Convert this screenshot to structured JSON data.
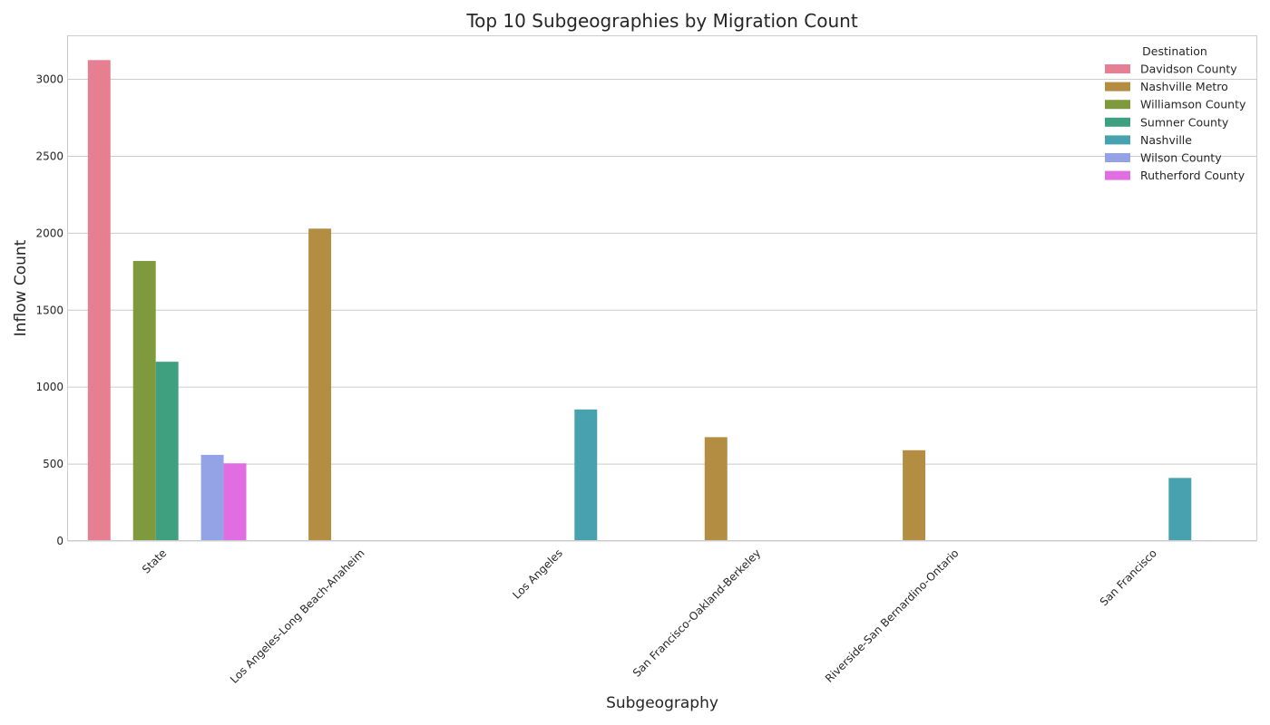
{
  "chart_data": {
    "type": "bar",
    "title": "Top 10 Subgeographies by Migration Count",
    "xlabel": "Subgeography",
    "ylabel": "Inflow Count",
    "ylim": [
      0,
      3280
    ],
    "yticks": [
      0,
      500,
      1000,
      1500,
      2000,
      2500,
      3000
    ],
    "grid": true,
    "legend": {
      "title": "Destination",
      "position": "top-right"
    },
    "categories": [
      "State",
      "Los Angeles-Long Beach-Anaheim",
      "Los Angeles",
      "San Francisco-Oakland-Berkeley",
      "Riverside-San Bernardino-Ontario",
      "San Francisco"
    ],
    "series": [
      {
        "name": "Davidson County",
        "color": "#e67f92",
        "values": [
          3125,
          null,
          null,
          null,
          null,
          null
        ]
      },
      {
        "name": "Nashville Metro",
        "color": "#b38d42",
        "values": [
          null,
          2030,
          null,
          675,
          590,
          null
        ]
      },
      {
        "name": "Williamson County",
        "color": "#7e9a3c",
        "values": [
          1820,
          null,
          null,
          null,
          null,
          null
        ]
      },
      {
        "name": "Sumner County",
        "color": "#3fa07f",
        "values": [
          1165,
          null,
          null,
          null,
          null,
          null
        ]
      },
      {
        "name": "Nashville",
        "color": "#47a1ae",
        "values": [
          null,
          null,
          855,
          null,
          null,
          410
        ]
      },
      {
        "name": "Wilson County",
        "color": "#94a2e6",
        "values": [
          560,
          null,
          null,
          null,
          null,
          null
        ]
      },
      {
        "name": "Rutherford County",
        "color": "#e06ee0",
        "values": [
          505,
          null,
          null,
          null,
          null,
          null
        ]
      }
    ]
  }
}
